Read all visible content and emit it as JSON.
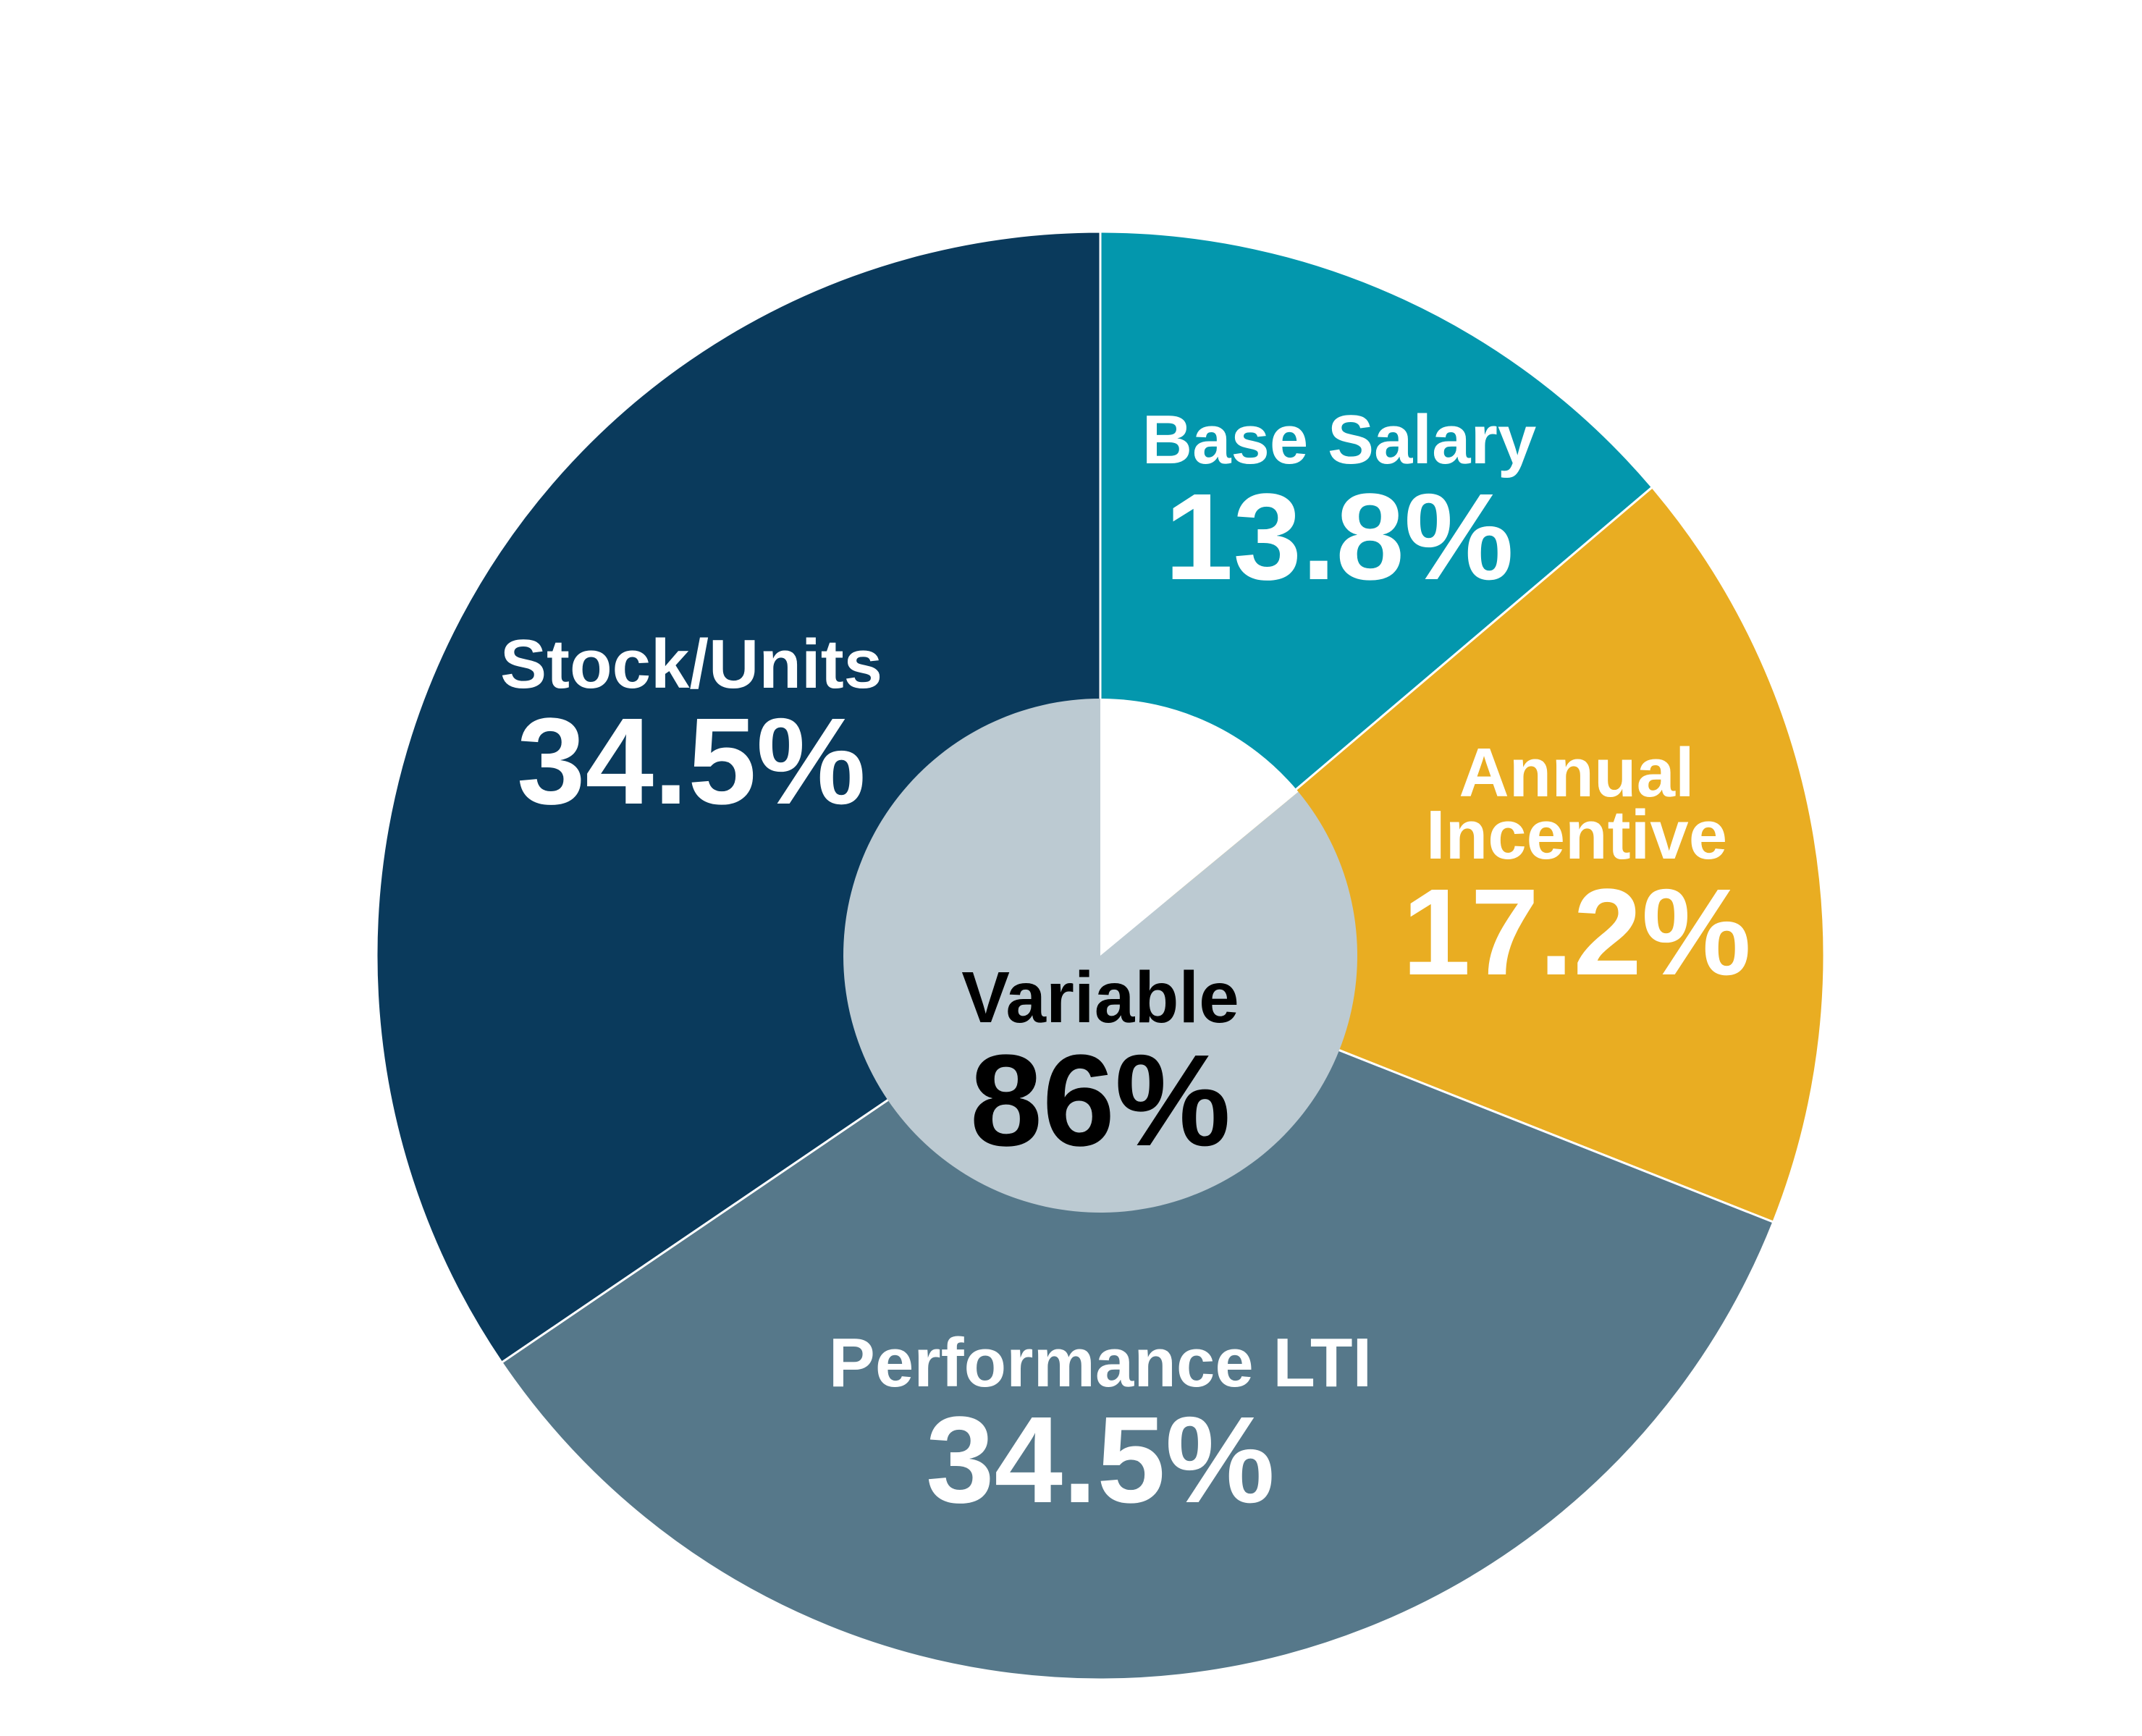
{
  "chart_data": {
    "type": "pie",
    "slices": [
      {
        "label_lines": [
          "Base Salary"
        ],
        "value_text": "13.8%",
        "value": 13.8,
        "color": "#0397AD"
      },
      {
        "label_lines": [
          "Annual",
          "Incentive"
        ],
        "value_text": "17.2%",
        "value": 17.2,
        "color": "#E9AD22"
      },
      {
        "label_lines": [
          "Performance LTI"
        ],
        "value_text": "34.5%",
        "value": 34.5,
        "color": "#56788A"
      },
      {
        "label_lines": [
          "Stock/Units"
        ],
        "value_text": "34.5%",
        "value": 34.5,
        "color": "#0A3A5C"
      }
    ],
    "center": {
      "label": "Variable",
      "value_text": "86%",
      "variable_share": 86,
      "fixed_share": 14,
      "variable_color": "#BCCAD2",
      "fixed_color": "#FFFFFF"
    }
  }
}
